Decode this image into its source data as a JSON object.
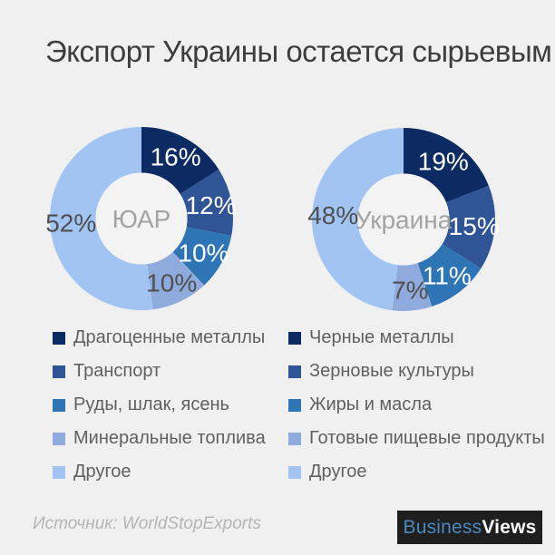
{
  "page": {
    "title": "Экспорт Украины остается сырьевым",
    "background_color": "#f0f0f0",
    "donut_hole_color": "#f3f3f3"
  },
  "chart_data": [
    {
      "type": "pie",
      "subtype": "donut",
      "center_label": "ЮАР",
      "categories": [
        "Драгоценные металлы",
        "Транспорт",
        "Руды, шлак, ясень",
        "Минеральные топлива",
        "Другое"
      ],
      "values": [
        16,
        12,
        10,
        10,
        52
      ],
      "data_labels": [
        "16%",
        "12%",
        "10%",
        "10%",
        "52%"
      ],
      "colors": [
        "#0c2b63",
        "#2f5597",
        "#2e75b6",
        "#8faadc",
        "#a1c4f3"
      ],
      "data_label_colors": [
        "#ffffff",
        "#ffffff",
        "#ffffff",
        "#505050",
        "#505050"
      ],
      "start_angle_deg": 0,
      "direction": "clockwise",
      "legend_position": "bottom"
    },
    {
      "type": "pie",
      "subtype": "donut",
      "center_label": "Украина",
      "categories": [
        "Черные металлы",
        "Зерновые культуры",
        "Жиры и масла",
        "Готовые пищевые продукты",
        "Другое"
      ],
      "values": [
        19,
        15,
        11,
        7,
        48
      ],
      "data_labels": [
        "19%",
        "15%",
        "11%",
        "7%",
        "48%"
      ],
      "colors": [
        "#0c2b63",
        "#2f5597",
        "#2e75b6",
        "#8faadc",
        "#a1c4f3"
      ],
      "data_label_colors": [
        "#ffffff",
        "#ffffff",
        "#ffffff",
        "#505050",
        "#505050"
      ],
      "start_angle_deg": 0,
      "direction": "clockwise",
      "legend_position": "bottom"
    }
  ],
  "footer": {
    "source": "Источник: WorldStopExports",
    "logo": {
      "text_primary": "Business",
      "text_secondary": "Views",
      "primary_color": "#4a89c0",
      "secondary_color": "#ffffff",
      "background": "#1f1f1f"
    }
  }
}
